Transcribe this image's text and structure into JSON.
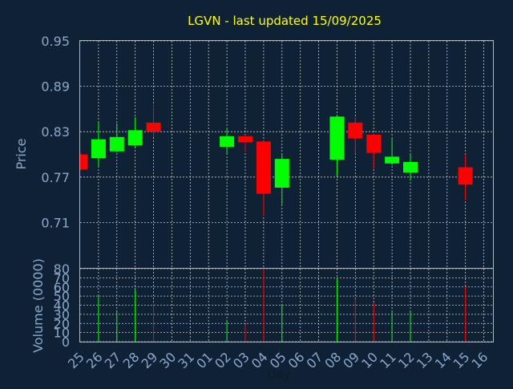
{
  "chart_data": [
    {
      "type": "candlestick",
      "title": "LGVN - last updated 15/09/2025",
      "ylabel": "Price",
      "ylim": [
        0.65,
        0.95
      ],
      "yticks": [
        "0.95",
        "0.89",
        "0.83",
        "0.77",
        "0.71"
      ],
      "grid": true,
      "candles": [
        {
          "day": "25",
          "open": 0.8,
          "high": 0.803,
          "low": 0.779,
          "close": 0.78
        },
        {
          "day": "26",
          "open": 0.795,
          "high": 0.843,
          "low": 0.783,
          "close": 0.82
        },
        {
          "day": "27",
          "open": 0.804,
          "high": 0.841,
          "low": 0.803,
          "close": 0.823
        },
        {
          "day": "28",
          "open": 0.812,
          "high": 0.849,
          "low": 0.809,
          "close": 0.832
        },
        {
          "day": "29",
          "open": 0.842,
          "high": 0.866,
          "low": 0.823,
          "close": 0.83
        },
        {
          "day": "02",
          "open": 0.81,
          "high": 0.835,
          "low": 0.801,
          "close": 0.824
        },
        {
          "day": "03",
          "open": 0.824,
          "high": 0.826,
          "low": 0.804,
          "close": 0.816
        },
        {
          "day": "04",
          "open": 0.817,
          "high": 0.818,
          "low": 0.719,
          "close": 0.748
        },
        {
          "day": "05",
          "open": 0.756,
          "high": 0.8,
          "low": 0.734,
          "close": 0.794
        },
        {
          "day": "08",
          "open": 0.793,
          "high": 0.851,
          "low": 0.771,
          "close": 0.85
        },
        {
          "day": "09",
          "open": 0.842,
          "high": 0.849,
          "low": 0.801,
          "close": 0.821
        },
        {
          "day": "10",
          "open": 0.826,
          "high": 0.827,
          "low": 0.781,
          "close": 0.802
        },
        {
          "day": "11",
          "open": 0.788,
          "high": 0.821,
          "low": 0.786,
          "close": 0.797
        },
        {
          "day": "12",
          "open": 0.776,
          "high": 0.802,
          "low": 0.765,
          "close": 0.79
        },
        {
          "day": "15",
          "open": 0.783,
          "high": 0.8,
          "low": 0.74,
          "close": 0.76
        }
      ]
    },
    {
      "type": "bar",
      "ylabel": "Volume (0000)",
      "xlabel": "Day",
      "ylim": [
        0,
        80
      ],
      "yticks": [
        "80",
        "70",
        "60",
        "50",
        "40",
        "30",
        "20",
        "10",
        "0"
      ],
      "categories": [
        "25",
        "26",
        "27",
        "28",
        "29",
        "30",
        "31",
        "01",
        "02",
        "03",
        "04",
        "05",
        "06",
        "07",
        "08",
        "09",
        "10",
        "11",
        "12",
        "13",
        "14",
        "15",
        "16"
      ],
      "volumes": [
        {
          "day": "26",
          "value": 50,
          "direction": "up"
        },
        {
          "day": "27",
          "value": 33,
          "direction": "up"
        },
        {
          "day": "28",
          "value": 57,
          "direction": "up"
        },
        {
          "day": "29",
          "value": 42,
          "direction": "down"
        },
        {
          "day": "02",
          "value": 24,
          "direction": "up"
        },
        {
          "day": "03",
          "value": 19,
          "direction": "down"
        },
        {
          "day": "04",
          "value": 80,
          "direction": "down"
        },
        {
          "day": "05",
          "value": 41,
          "direction": "up"
        },
        {
          "day": "08",
          "value": 69,
          "direction": "up"
        },
        {
          "day": "09",
          "value": 47,
          "direction": "down"
        },
        {
          "day": "10",
          "value": 43,
          "direction": "down"
        },
        {
          "day": "11",
          "value": 33,
          "direction": "up"
        },
        {
          "day": "12",
          "value": 34,
          "direction": "up"
        },
        {
          "day": "15",
          "value": 60,
          "direction": "down"
        }
      ]
    }
  ],
  "colors": {
    "background": "#0f2135",
    "up": "#00ff00",
    "down": "#ff0000",
    "axis_text": "#8aa8c8",
    "title": "#ffff00",
    "grid": "#c8c8c8",
    "frame": "#aeb8c4"
  }
}
